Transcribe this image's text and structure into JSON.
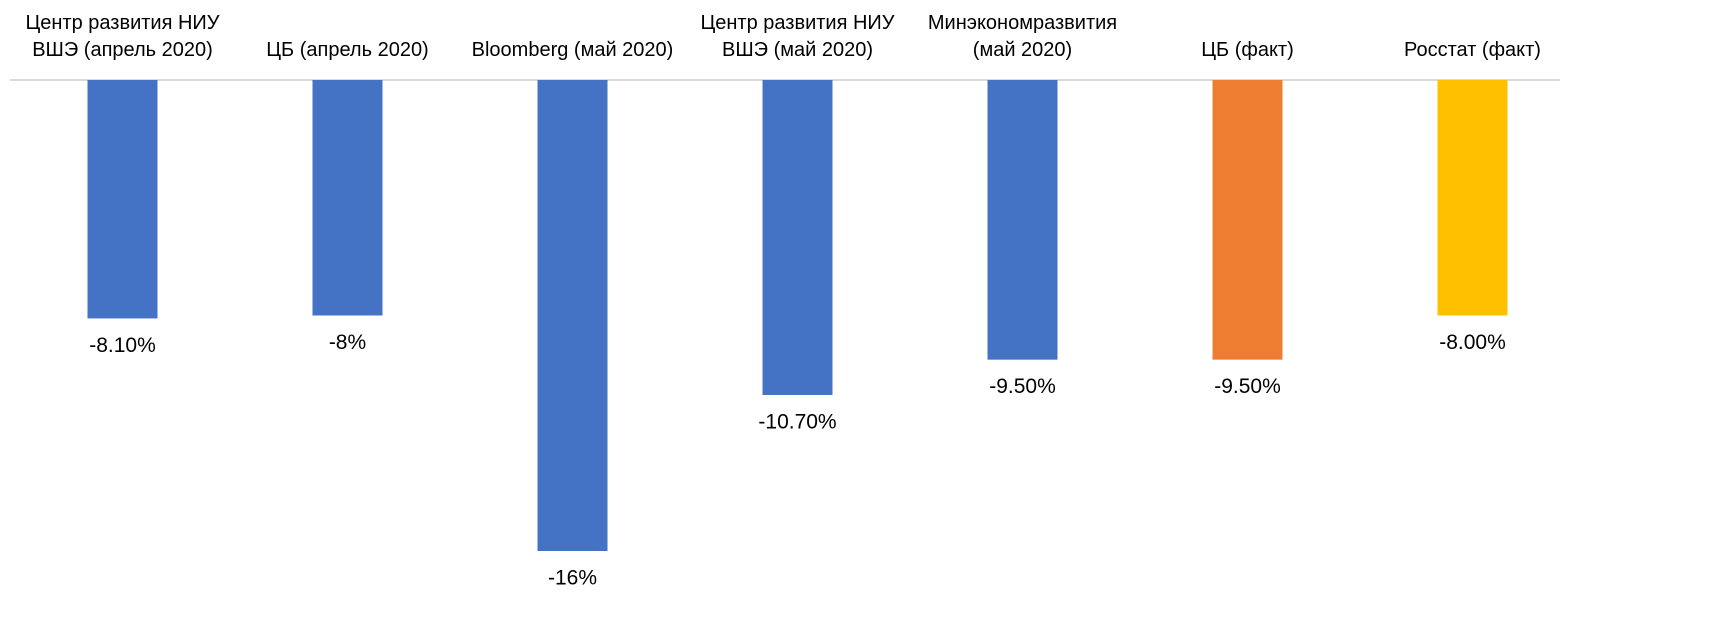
{
  "chart_data": {
    "type": "bar",
    "categories": [
      "Центр развития НИУ ВШЭ (апрель 2020)",
      "ЦБ (апрель 2020)",
      "Bloomberg (май 2020)",
      "Центр развития НИУ ВШЭ (май 2020)",
      "Минэкономразвития (май 2020)",
      "ЦБ (факт)",
      "Росстат (факт)"
    ],
    "values": [
      -8.1,
      -8,
      -16,
      -10.7,
      -9.5,
      -9.5,
      -8
    ],
    "value_labels": [
      "-8.10%",
      "-8%",
      "-16%",
      "-10.70%",
      "-9.50%",
      "-9.50%",
      "-8.00%"
    ],
    "colors": [
      "#4472c4",
      "#4472c4",
      "#4472c4",
      "#4472c4",
      "#4472c4",
      "#ed7d31",
      "#ffc000"
    ],
    "ylim": [
      -16,
      0
    ]
  }
}
